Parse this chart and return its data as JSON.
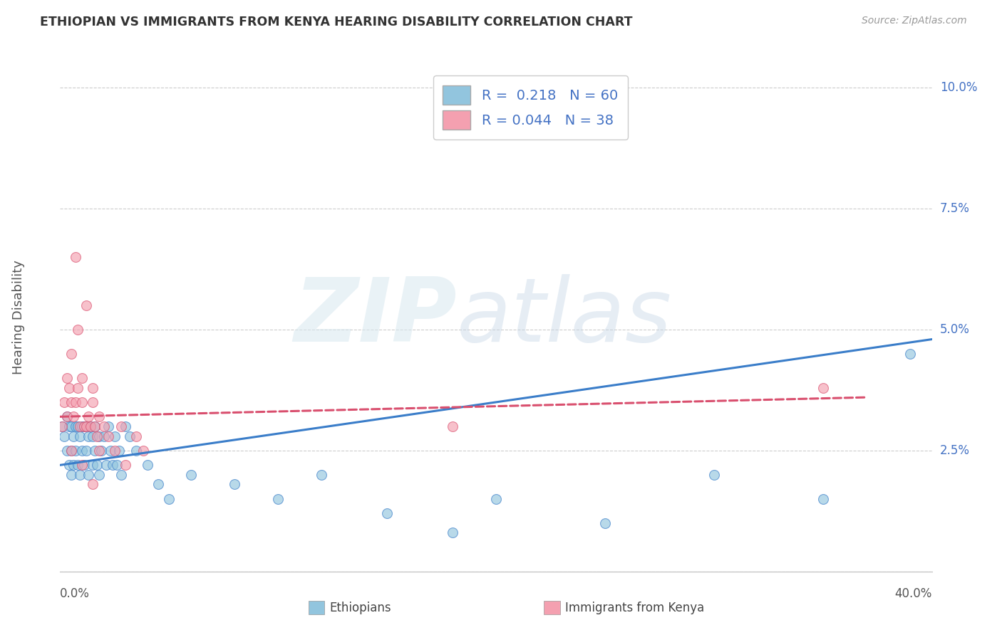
{
  "title": "ETHIOPIAN VS IMMIGRANTS FROM KENYA HEARING DISABILITY CORRELATION CHART",
  "source": "Source: ZipAtlas.com",
  "xlabel_label": "Ethiopians",
  "xlabel_label2": "Immigrants from Kenya",
  "ylabel": "Hearing Disability",
  "xlim": [
    0.0,
    0.4
  ],
  "ylim": [
    0.0,
    0.105
  ],
  "yticks": [
    0.0,
    0.025,
    0.05,
    0.075,
    0.1
  ],
  "ytick_labels": [
    "",
    "2.5%",
    "5.0%",
    "7.5%",
    "10.0%"
  ],
  "blue_R": 0.218,
  "blue_N": 60,
  "pink_R": 0.044,
  "pink_N": 38,
  "blue_color": "#92c5de",
  "pink_color": "#f4a0b0",
  "blue_line_color": "#3a7dc9",
  "pink_line_color": "#d94f6e",
  "text_color": "#4472c4",
  "ethiopians_x": [
    0.001,
    0.002,
    0.003,
    0.003,
    0.004,
    0.004,
    0.005,
    0.005,
    0.005,
    0.006,
    0.006,
    0.007,
    0.007,
    0.008,
    0.008,
    0.009,
    0.009,
    0.01,
    0.01,
    0.011,
    0.011,
    0.012,
    0.012,
    0.013,
    0.013,
    0.014,
    0.015,
    0.015,
    0.016,
    0.016,
    0.017,
    0.018,
    0.018,
    0.019,
    0.02,
    0.021,
    0.022,
    0.023,
    0.024,
    0.025,
    0.026,
    0.027,
    0.028,
    0.03,
    0.032,
    0.035,
    0.04,
    0.045,
    0.05,
    0.06,
    0.08,
    0.1,
    0.12,
    0.15,
    0.18,
    0.2,
    0.25,
    0.3,
    0.35,
    0.39
  ],
  "ethiopians_y": [
    0.03,
    0.028,
    0.032,
    0.025,
    0.03,
    0.022,
    0.03,
    0.025,
    0.02,
    0.028,
    0.022,
    0.03,
    0.025,
    0.03,
    0.022,
    0.028,
    0.02,
    0.03,
    0.025,
    0.03,
    0.022,
    0.03,
    0.025,
    0.028,
    0.02,
    0.03,
    0.028,
    0.022,
    0.03,
    0.025,
    0.022,
    0.028,
    0.02,
    0.025,
    0.028,
    0.022,
    0.03,
    0.025,
    0.022,
    0.028,
    0.022,
    0.025,
    0.02,
    0.03,
    0.028,
    0.025,
    0.022,
    0.018,
    0.015,
    0.02,
    0.018,
    0.015,
    0.02,
    0.012,
    0.008,
    0.015,
    0.01,
    0.02,
    0.015,
    0.045
  ],
  "kenya_x": [
    0.001,
    0.002,
    0.003,
    0.003,
    0.004,
    0.005,
    0.005,
    0.006,
    0.007,
    0.007,
    0.008,
    0.008,
    0.009,
    0.01,
    0.01,
    0.011,
    0.012,
    0.012,
    0.013,
    0.014,
    0.015,
    0.015,
    0.016,
    0.017,
    0.018,
    0.018,
    0.02,
    0.022,
    0.025,
    0.028,
    0.03,
    0.035,
    0.038,
    0.005,
    0.01,
    0.015,
    0.18,
    0.35
  ],
  "kenya_y": [
    0.03,
    0.035,
    0.04,
    0.032,
    0.038,
    0.045,
    0.035,
    0.032,
    0.065,
    0.035,
    0.038,
    0.05,
    0.03,
    0.035,
    0.04,
    0.03,
    0.055,
    0.03,
    0.032,
    0.03,
    0.038,
    0.035,
    0.03,
    0.028,
    0.032,
    0.025,
    0.03,
    0.028,
    0.025,
    0.03,
    0.022,
    0.028,
    0.025,
    0.025,
    0.022,
    0.018,
    0.03,
    0.038
  ]
}
